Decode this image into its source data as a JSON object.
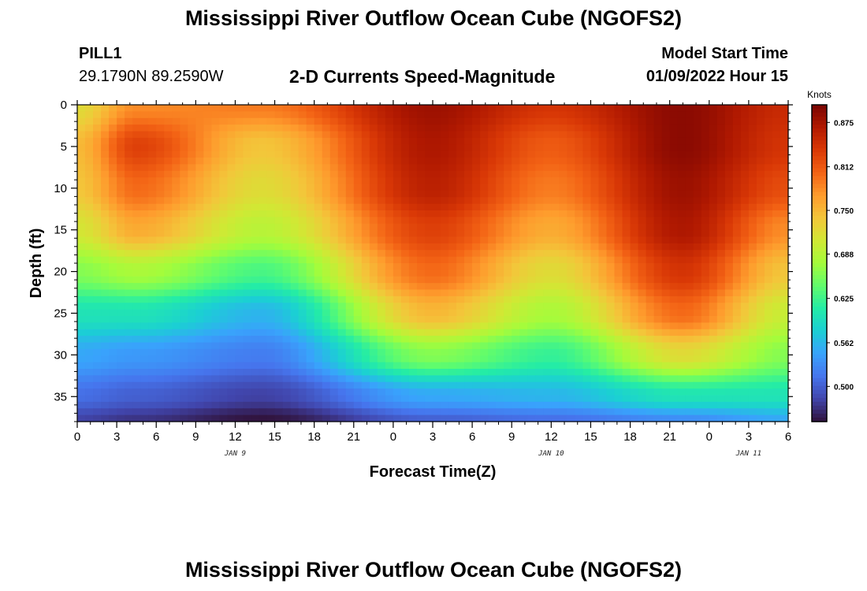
{
  "header": {
    "title": "Mississippi River Outflow Ocean Cube (NGOFS2)",
    "station": "PILL1",
    "coordinates": "29.1790N  89.2590W",
    "subtitle": "2-D Currents Speed-Magnitude",
    "model_start_label": "Model Start Time",
    "model_start_value": "01/09/2022 Hour 15"
  },
  "footer": {
    "title": "Mississippi River Outflow Ocean Cube (NGOFS2)"
  },
  "chart_data": {
    "type": "heatmap",
    "title": "2-D Currents Speed-Magnitude",
    "xlabel": "Forecast Time(Z)",
    "ylabel": "Depth (ft)",
    "x_range_hours": [
      0,
      54
    ],
    "x_ticks": [
      "0",
      "3",
      "6",
      "9",
      "12",
      "15",
      "18",
      "21",
      "0",
      "3",
      "6",
      "9",
      "12",
      "15",
      "18",
      "21",
      "0",
      "3",
      "6"
    ],
    "date_labels": [
      {
        "label": "JAN 9",
        "hour": 12
      },
      {
        "label": "JAN 10",
        "hour": 36
      },
      {
        "label": "JAN 11",
        "hour": 51
      }
    ],
    "y_range_ft": [
      0,
      38
    ],
    "y_ticks": [
      "0",
      "5",
      "10",
      "15",
      "20",
      "25",
      "30",
      "35"
    ],
    "colorbar": {
      "unit": "Knots",
      "range": [
        0.45,
        0.9
      ],
      "ticks": [
        "0.875",
        "0.812",
        "0.750",
        "0.688",
        "0.625",
        "0.562",
        "0.500"
      ],
      "colors": [
        "#30123b",
        "#4145ab",
        "#4675ed",
        "#39a2fc",
        "#1bcfd4",
        "#24eca6",
        "#61fc6c",
        "#a4fc3b",
        "#d1e834",
        "#f3c63a",
        "#fe9b2d",
        "#f36315",
        "#d93806",
        "#b11901",
        "#7a0402"
      ]
    },
    "profile_speeds_knots": {
      "description_depths_ft": [
        0,
        5,
        10,
        15,
        20,
        25,
        30,
        35,
        38
      ],
      "hour_0": [
        0.72,
        0.75,
        0.74,
        0.71,
        0.66,
        0.6,
        0.55,
        0.51,
        0.48
      ],
      "hour_4.5": [
        0.78,
        0.83,
        0.8,
        0.76,
        0.68,
        0.6,
        0.54,
        0.5,
        0.47
      ],
      "hour_14": [
        0.79,
        0.74,
        0.72,
        0.69,
        0.63,
        0.56,
        0.52,
        0.48,
        0.45
      ],
      "hour_27": [
        0.88,
        0.87,
        0.86,
        0.83,
        0.8,
        0.75,
        0.66,
        0.55,
        0.5
      ],
      "hour_36": [
        0.84,
        0.81,
        0.79,
        0.76,
        0.72,
        0.68,
        0.62,
        0.56,
        0.51
      ],
      "hour_46": [
        0.89,
        0.89,
        0.88,
        0.87,
        0.84,
        0.8,
        0.72,
        0.6,
        0.53
      ],
      "hour_54": [
        0.85,
        0.84,
        0.82,
        0.78,
        0.74,
        0.7,
        0.66,
        0.6,
        0.55
      ]
    }
  }
}
